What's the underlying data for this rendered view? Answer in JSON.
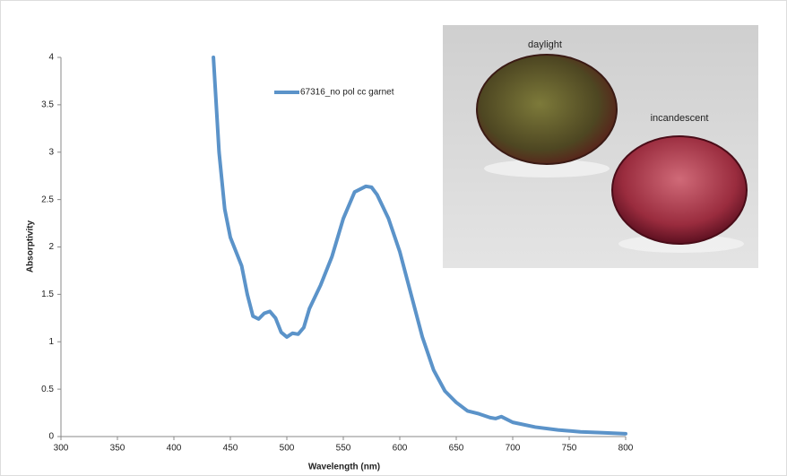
{
  "chart_data": {
    "type": "line",
    "xlabel": "Wavelength (nm)",
    "ylabel": "Absorptivity",
    "x": [
      435,
      440,
      445,
      450,
      455,
      460,
      465,
      470,
      475,
      480,
      485,
      490,
      495,
      500,
      505,
      510,
      515,
      520,
      530,
      540,
      550,
      560,
      570,
      575,
      580,
      590,
      600,
      610,
      620,
      630,
      640,
      650,
      660,
      670,
      680,
      685,
      690,
      695,
      700,
      720,
      740,
      760,
      780,
      800
    ],
    "series": [
      {
        "name": "67316_no pol cc garnet",
        "color": "#5b93c9",
        "values": [
          4.0,
          3.0,
          2.4,
          2.1,
          1.95,
          1.8,
          1.5,
          1.27,
          1.24,
          1.3,
          1.32,
          1.25,
          1.1,
          1.05,
          1.09,
          1.08,
          1.15,
          1.35,
          1.6,
          1.9,
          2.3,
          2.58,
          2.64,
          2.63,
          2.55,
          2.3,
          1.95,
          1.5,
          1.05,
          0.7,
          0.48,
          0.36,
          0.27,
          0.24,
          0.2,
          0.19,
          0.21,
          0.18,
          0.15,
          0.1,
          0.07,
          0.05,
          0.04,
          0.03
        ]
      }
    ],
    "xlim": [
      300,
      800
    ],
    "xticks": [
      300,
      350,
      400,
      450,
      500,
      550,
      600,
      650,
      700,
      750,
      800
    ],
    "ylim": [
      0,
      4
    ],
    "yticks": [
      0,
      0.5,
      1,
      1.5,
      2,
      2.5,
      3,
      3.5,
      4
    ],
    "grid": false,
    "annotations": [
      "daylight",
      "incandescent"
    ]
  }
}
